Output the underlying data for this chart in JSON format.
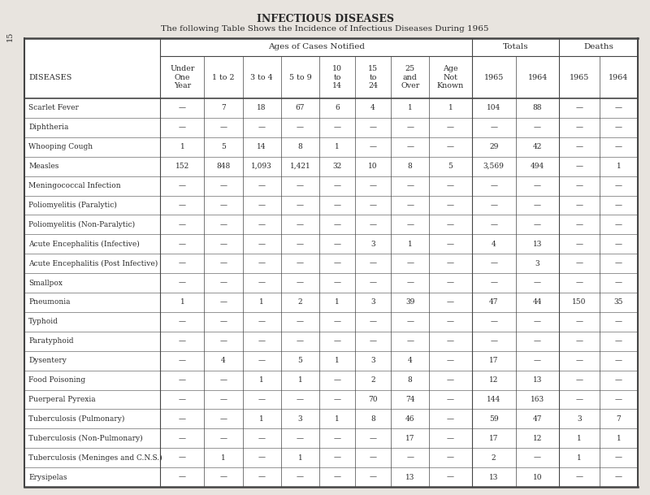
{
  "title": "INFECTIOUS DISEASES",
  "subtitle": "The following Table Shows the Incidence of Infectious Diseases During 1965",
  "page_number": "15",
  "diseases": [
    "Scarlet Fever",
    "Diphtheria",
    "Whooping Cough",
    "Measles",
    "Meningococcal Infection",
    "Poliomyelitis (Paralytic)",
    "Poliomyelitis (Non-Paralytic)",
    "Acute Encephalitis (Infective)",
    "Acute Encephalitis (Post Infective)",
    "Smallpox",
    "Pneumonia",
    "Typhoid",
    "Paratyphoid",
    "Dysentery",
    "Food Poisoning",
    "Puerperal Pyrexia",
    "Tuberculosis (Pulmonary)",
    "Tuberculosis (Non-Pulmonary)",
    "Tuberculosis (Meninges and C.N.S.)",
    "Erysipelas"
  ],
  "table_data": [
    [
      "—",
      "7",
      "18",
      "67",
      "6",
      "4",
      "1",
      "1",
      "104",
      "88",
      "—",
      "—"
    ],
    [
      "—",
      "—",
      "—",
      "—",
      "—",
      "—",
      "—",
      "—",
      "—",
      "—",
      "—",
      "—"
    ],
    [
      "1",
      "5",
      "14",
      "8",
      "1",
      "—",
      "—",
      "—",
      "29",
      "42",
      "—",
      "—"
    ],
    [
      "152",
      "848",
      "1,093",
      "1,421",
      "32",
      "10",
      "8",
      "5",
      "3,569",
      "494",
      "—",
      "1"
    ],
    [
      "—",
      "—",
      "—",
      "—",
      "—",
      "—",
      "—",
      "—",
      "—",
      "—",
      "—",
      "—"
    ],
    [
      "—",
      "—",
      "—",
      "—",
      "—",
      "—",
      "—",
      "—",
      "—",
      "—",
      "—",
      "—"
    ],
    [
      "—",
      "—",
      "—",
      "—",
      "—",
      "—",
      "—",
      "—",
      "—",
      "—",
      "—",
      "—"
    ],
    [
      "—",
      "—",
      "—",
      "—",
      "—",
      "3",
      "1",
      "—",
      "4",
      "13",
      "—",
      "—"
    ],
    [
      "—",
      "—",
      "—",
      "—",
      "—",
      "—",
      "—",
      "—",
      "—",
      "3",
      "—",
      "—"
    ],
    [
      "—",
      "—",
      "—",
      "—",
      "—",
      "—",
      "—",
      "—",
      "—",
      "—",
      "—",
      "—"
    ],
    [
      "1",
      "—",
      "1",
      "2",
      "1",
      "3",
      "39",
      "—",
      "47",
      "44",
      "150",
      "35"
    ],
    [
      "—",
      "—",
      "—",
      "—",
      "—",
      "—",
      "—",
      "—",
      "—",
      "—",
      "—",
      "—"
    ],
    [
      "—",
      "—",
      "—",
      "—",
      "—",
      "—",
      "—",
      "—",
      "—",
      "—",
      "—",
      "—"
    ],
    [
      "—",
      "4",
      "—",
      "5",
      "1",
      "3",
      "4",
      "—",
      "17",
      "—",
      "—",
      "—"
    ],
    [
      "—",
      "—",
      "1",
      "1",
      "—",
      "2",
      "8",
      "—",
      "12",
      "13",
      "—",
      "—"
    ],
    [
      "—",
      "—",
      "—",
      "—",
      "—",
      "70",
      "74",
      "—",
      "144",
      "163",
      "—",
      "—"
    ],
    [
      "—",
      "—",
      "1",
      "3",
      "1",
      "8",
      "46",
      "—",
      "59",
      "47",
      "3",
      "7"
    ],
    [
      "—",
      "—",
      "—",
      "—",
      "—",
      "—",
      "17",
      "—",
      "17",
      "12",
      "1",
      "1"
    ],
    [
      "—",
      "1",
      "—",
      "1",
      "—",
      "—",
      "—",
      "—",
      "2",
      "—",
      "1",
      "—"
    ],
    [
      "—",
      "—",
      "—",
      "—",
      "—",
      "—",
      "13",
      "—",
      "13",
      "10",
      "—",
      "—"
    ]
  ],
  "bg_color": "#e8e4df",
  "table_bg": "#ffffff",
  "text_color": "#2a2a2a",
  "line_color": "#444444"
}
